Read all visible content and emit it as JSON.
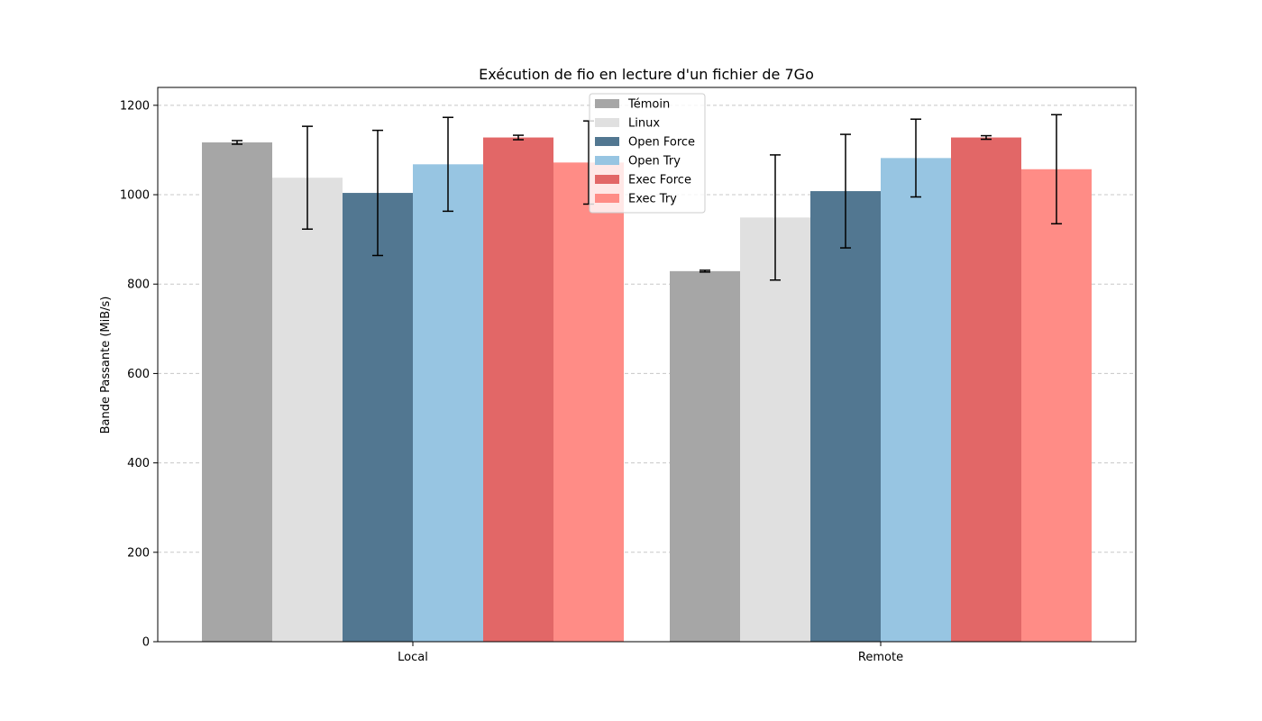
{
  "chart_data": {
    "type": "bar",
    "title": "Exécution de fio en lecture d'un fichier de 7Go",
    "xlabel": "",
    "ylabel": "Bande Passante (MiB/s)",
    "categories": [
      "Local",
      "Remote"
    ],
    "ylim": [
      0,
      1240
    ],
    "yticks": [
      0,
      200,
      400,
      600,
      800,
      1000,
      1200
    ],
    "grid": "y-dashed",
    "legend_position": "top-center",
    "series": [
      {
        "name": "Témoin",
        "color": "#a6a6a6",
        "values": [
          1117,
          829
        ],
        "errors": [
          4,
          2
        ]
      },
      {
        "name": "Linux",
        "color": "#e0e0e0",
        "values": [
          1038,
          949
        ],
        "errors": [
          115,
          140
        ]
      },
      {
        "name": "Open Force",
        "color": "#527791",
        "values": [
          1004,
          1008
        ],
        "errors": [
          140,
          127
        ]
      },
      {
        "name": "Open Try",
        "color": "#97c5e2",
        "values": [
          1068,
          1082
        ],
        "errors": [
          105,
          87
        ]
      },
      {
        "name": "Exec Force",
        "color": "#e26767",
        "values": [
          1128,
          1128
        ],
        "errors": [
          5,
          4
        ]
      },
      {
        "name": "Exec Try",
        "color": "#ff8c86",
        "values": [
          1072,
          1057
        ],
        "errors": [
          93,
          122
        ]
      }
    ]
  }
}
